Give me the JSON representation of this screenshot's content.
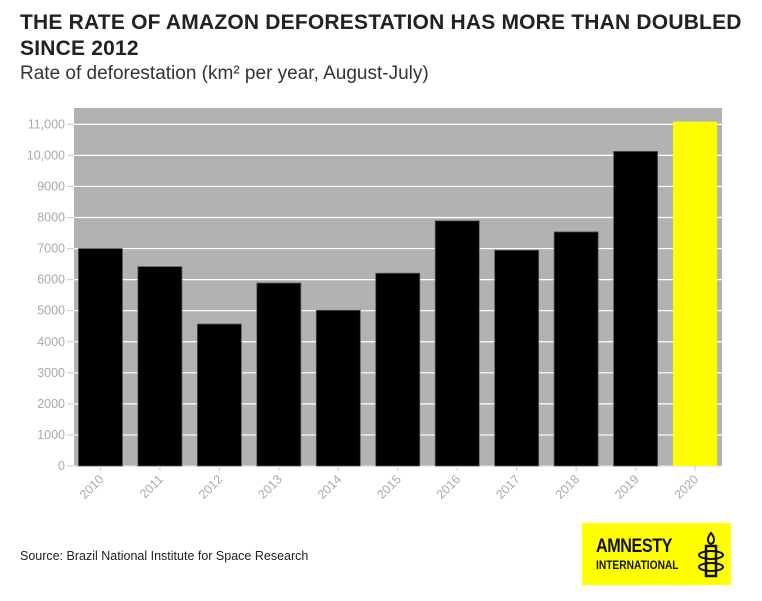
{
  "title": "THE RATE OF AMAZON DEFORESTATION HAS MORE THAN DOUBLED SINCE 2012",
  "subtitle": "Rate of deforestation (km² per year, August-July)",
  "source": "Source: Brazil National Institute for Space Research",
  "logo": {
    "line1": "AMNESTY",
    "line2": "INTERNATIONAL",
    "icon": "candle-barbed-wire-icon",
    "background": "#ffff00"
  },
  "chart_data": {
    "type": "bar",
    "title": "THE RATE OF AMAZON DEFORESTATION HAS MORE THAN DOUBLED SINCE 2012",
    "subtitle": "Rate of deforestation (km² per year, August-July)",
    "xlabel": "",
    "ylabel": "",
    "categories": [
      "2010",
      "2011",
      "2012",
      "2013",
      "2014",
      "2015",
      "2016",
      "2017",
      "2018",
      "2019",
      "2020"
    ],
    "values": [
      7000,
      6418,
      4571,
      5891,
      5012,
      6207,
      7893,
      6947,
      7536,
      10129,
      11088
    ],
    "bar_colors": [
      "#000000",
      "#000000",
      "#000000",
      "#000000",
      "#000000",
      "#000000",
      "#000000",
      "#000000",
      "#000000",
      "#000000",
      "#ffff00"
    ],
    "ylim": [
      0,
      11500
    ],
    "yticks": [
      0,
      1000,
      2000,
      3000,
      4000,
      5000,
      6000,
      7000,
      8000,
      9000,
      10000,
      11000
    ],
    "ytick_labels": [
      "0",
      "1000",
      "2000",
      "3000",
      "4000",
      "5000",
      "6000",
      "7000",
      "8000",
      "9000",
      "10,000",
      "11,000"
    ],
    "grid": true,
    "plot_background": "#b2b2b2",
    "legend": "none"
  }
}
